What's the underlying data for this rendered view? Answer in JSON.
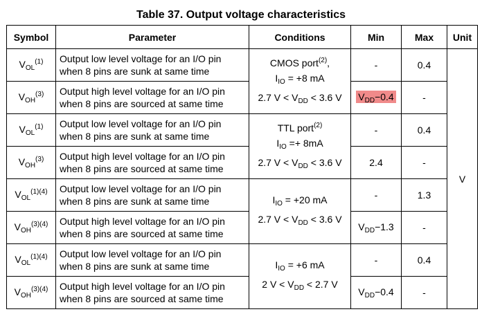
{
  "caption": "Table 37. Output voltage characteristics",
  "headers": {
    "symbol": "Symbol",
    "parameter": "Parameter",
    "conditions": "Conditions",
    "min": "Min",
    "max": "Max",
    "unit": "Unit"
  },
  "rows": [
    {
      "sym_main": "V",
      "sym_sub": "OL",
      "sym_sup": "(1)",
      "param_line1": "Output low level voltage for an I/O pin",
      "param_line2": "when 8 pins are sunk at same time",
      "min": "-",
      "max": "0.4"
    },
    {
      "sym_main": "V",
      "sym_sub": "OH",
      "sym_sup": "(3)",
      "param_line1": "Output high level voltage for an I/O pin",
      "param_line2": "when 8 pins are sourced at same time",
      "min_v": "V",
      "min_sub": "DD",
      "min_rest": "−0.4",
      "max": "-"
    },
    {
      "sym_main": "V",
      "sym_sub": "OL",
      "sym_sup": "(1)",
      "param_line1": "Output low level voltage for an I/O pin",
      "param_line2": "when 8 pins are sunk at same time",
      "min": "-",
      "max": "0.4"
    },
    {
      "sym_main": "V",
      "sym_sub": "OH",
      "sym_sup": "(3)",
      "param_line1": "Output high level voltage for an I/O pin",
      "param_line2": "when 8 pins are sourced at same time",
      "min": "2.4",
      "max": "-"
    },
    {
      "sym_main": "V",
      "sym_sub": "OL",
      "sym_sup": "(1)(4)",
      "param_line1": "Output low level voltage for an I/O pin",
      "param_line2": "when 8 pins are sunk at same time",
      "min": "-",
      "max": "1.3"
    },
    {
      "sym_main": "V",
      "sym_sub": "OH",
      "sym_sup": "(3)(4)",
      "param_line1": "Output high level voltage for an I/O pin",
      "param_line2": "when 8 pins are sourced at same time",
      "min_v": "V",
      "min_sub": "DD",
      "min_rest": "−1.3",
      "max": "-"
    },
    {
      "sym_main": "V",
      "sym_sub": "OL",
      "sym_sup": "(1)(4)",
      "param_line1": "Output low level voltage for an I/O pin",
      "param_line2": "when 8 pins are sunk at same time",
      "min": "-",
      "max": "0.4"
    },
    {
      "sym_main": "V",
      "sym_sub": "OH",
      "sym_sup": "(3)(4)",
      "param_line1": "Output high level voltage for an I/O pin",
      "param_line2": "when 8 pins are sourced at same time",
      "min_v": "V",
      "min_sub": "DD",
      "min_rest": "−0.4",
      "max": "-"
    }
  ],
  "conditions": [
    {
      "l1_text": "CMOS port",
      "l1_sup": "(2)",
      "l1_tail": ",",
      "l2_pre": "I",
      "l2_sub": "IO",
      "l2_post": " = +8 mA",
      "l3_pre": "2.7 V < V",
      "l3_sub": "DD",
      "l3_post": " < 3.6 V"
    },
    {
      "l1_text": "TTL port",
      "l1_sup": "(2)",
      "l2_pre": "I",
      "l2_sub": "IO",
      "l2_post": " =+ 8mA",
      "l3_pre": "2.7 V < V",
      "l3_sub": "DD",
      "l3_post": " < 3.6 V"
    },
    {
      "l2_pre": "I",
      "l2_sub": "IO",
      "l2_post": " = +20 mA",
      "l3_pre": "2.7 V < V",
      "l3_sub": "DD",
      "l3_post": " < 3.6 V"
    },
    {
      "l2_pre": "I",
      "l2_sub": "IO",
      "l2_post": " = +6 mA",
      "l3_pre": "2 V < V",
      "l3_sub": "DD",
      "l3_post": " < 2.7 V"
    }
  ],
  "unit": "V",
  "highlight_color": "#f08a8a"
}
